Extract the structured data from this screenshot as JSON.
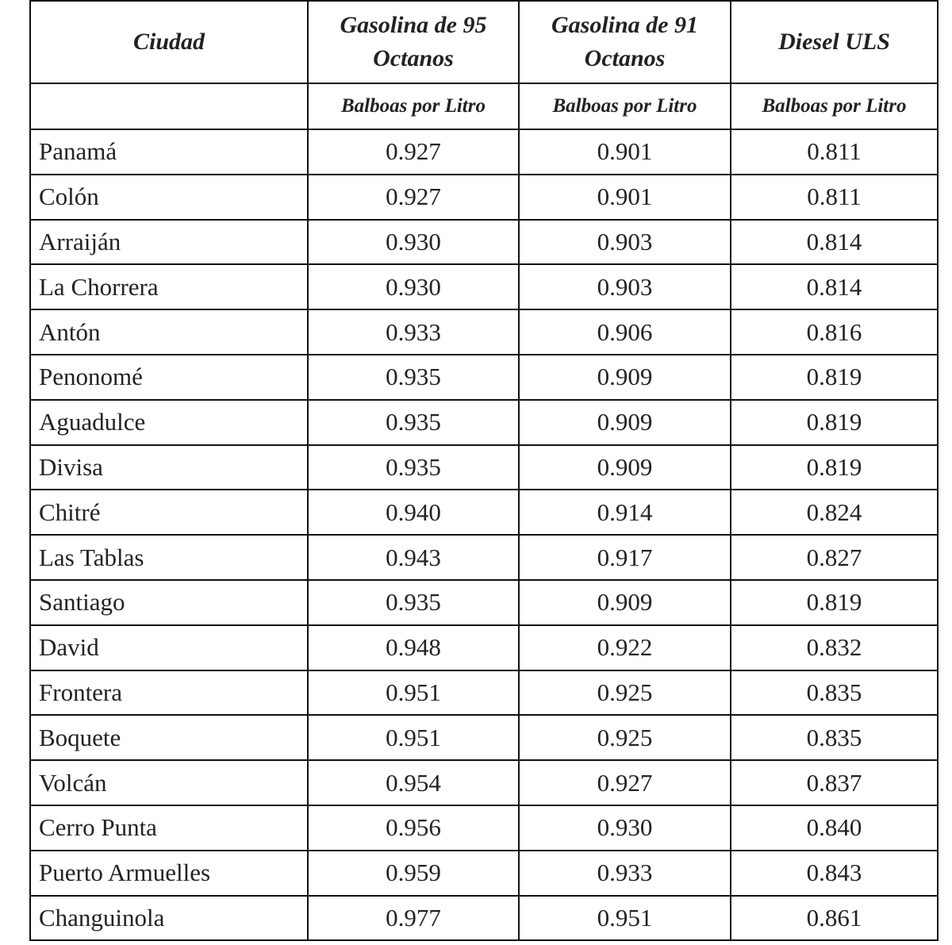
{
  "table": {
    "columns": [
      "Ciudad",
      "Gasolina de 95 Octanos",
      "Gasolina de 91 Octanos",
      "Diesel ULS"
    ],
    "units": [
      "Balboas por Litro",
      "Balboas por Litro",
      "Balboas por Litro"
    ],
    "rows": [
      [
        "Panamá",
        "0.927",
        "0.901",
        "0.811"
      ],
      [
        "Colón",
        "0.927",
        "0.901",
        "0.811"
      ],
      [
        "Arraiján",
        "0.930",
        "0.903",
        "0.814"
      ],
      [
        "La Chorrera",
        "0.930",
        "0.903",
        "0.814"
      ],
      [
        "Antón",
        "0.933",
        "0.906",
        "0.816"
      ],
      [
        "Penonomé",
        "0.935",
        "0.909",
        "0.819"
      ],
      [
        "Aguadulce",
        "0.935",
        "0.909",
        "0.819"
      ],
      [
        "Divisa",
        "0.935",
        "0.909",
        "0.819"
      ],
      [
        "Chitré",
        "0.940",
        "0.914",
        "0.824"
      ],
      [
        "Las Tablas",
        "0.943",
        "0.917",
        "0.827"
      ],
      [
        "Santiago",
        "0.935",
        "0.909",
        "0.819"
      ],
      [
        "David",
        "0.948",
        "0.922",
        "0.832"
      ],
      [
        "Frontera",
        "0.951",
        "0.925",
        "0.835"
      ],
      [
        "Boquete",
        "0.951",
        "0.925",
        "0.835"
      ],
      [
        "Volcán",
        "0.954",
        "0.927",
        "0.837"
      ],
      [
        "Cerro Punta",
        "0.956",
        "0.930",
        "0.840"
      ],
      [
        "Puerto Armuelles",
        "0.959",
        "0.933",
        "0.843"
      ],
      [
        "Changuinola",
        "0.977",
        "0.951",
        "0.861"
      ]
    ]
  }
}
